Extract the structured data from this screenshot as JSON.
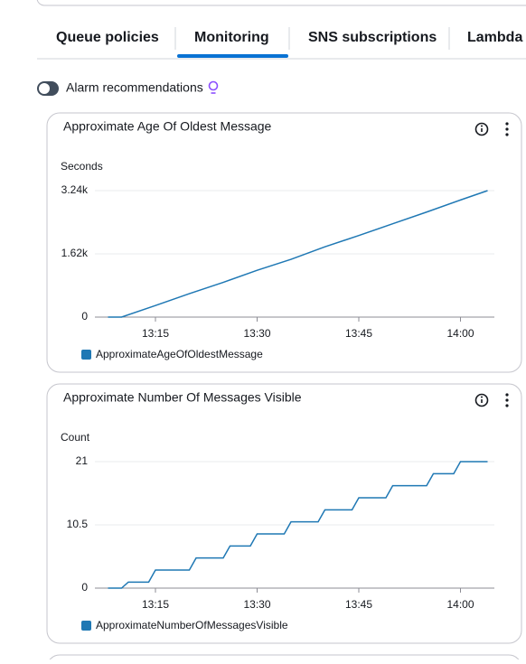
{
  "tabs": [
    "Queue policies",
    "Monitoring",
    "SNS subscriptions",
    "Lambda"
  ],
  "active_tab": 1,
  "toggle_label": "Alarm recommendations",
  "chart_data": [
    {
      "type": "line",
      "title": "Approximate Age Of Oldest Message",
      "y_label": "Seconds",
      "x": [
        "13:08",
        "13:10",
        "13:15",
        "13:20",
        "13:25",
        "13:30",
        "13:35",
        "13:40",
        "13:45",
        "13:50",
        "13:55",
        "14:00",
        "14:04"
      ],
      "series": [
        {
          "name": "ApproximateAgeOfOldestMessage",
          "color": "#1f78b4",
          "values": [
            0,
            0,
            296,
            600,
            890,
            1200,
            1480,
            1800,
            2090,
            2390,
            2690,
            3000,
            3240
          ]
        }
      ],
      "xlim": [
        "13:07",
        "14:05"
      ],
      "xticks": [
        "13:15",
        "13:30",
        "13:45",
        "14:00"
      ],
      "ylim": [
        0,
        3240
      ],
      "yticks": [
        0,
        {
          "value": 1620,
          "label": "1.62k"
        },
        {
          "value": 3240,
          "label": "3.24k"
        }
      ],
      "grid": true
    },
    {
      "type": "line",
      "title": "Approximate Number Of Messages Visible",
      "y_label": "Count",
      "x": [
        "13:08",
        "13:10",
        "13:11",
        "13:14",
        "13:15",
        "13:20",
        "13:21",
        "13:25",
        "13:26",
        "13:29",
        "13:30",
        "13:34",
        "13:35",
        "13:39",
        "13:40",
        "13:44",
        "13:45",
        "13:49",
        "13:50",
        "13:55",
        "13:56",
        "13:59",
        "14:00",
        "14:04"
      ],
      "series": [
        {
          "name": "ApproximateNumberOfMessagesVisible",
          "color": "#1f78b4",
          "values": [
            0,
            0,
            1,
            1,
            3,
            3,
            5,
            5,
            7,
            7,
            9,
            9,
            11,
            11,
            13,
            13,
            15,
            15,
            17,
            17,
            19,
            19,
            21,
            21
          ]
        }
      ],
      "xlim": [
        "13:07",
        "14:05"
      ],
      "xticks": [
        "13:15",
        "13:30",
        "13:45",
        "14:00"
      ],
      "ylim": [
        0,
        21
      ],
      "yticks": [
        0,
        10.5,
        21
      ],
      "grid": true
    }
  ]
}
